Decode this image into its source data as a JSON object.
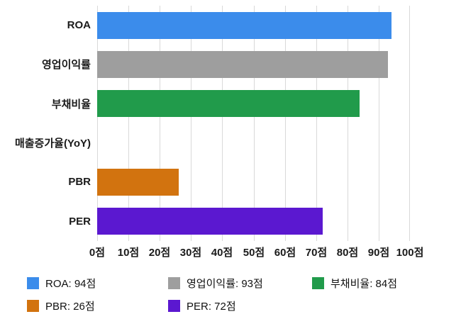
{
  "chart_data": {
    "type": "bar",
    "orientation": "horizontal",
    "title": "",
    "xlabel": "",
    "ylabel": "",
    "unit": "점",
    "xlim": [
      0,
      100
    ],
    "grid": true,
    "legend_position": "bottom",
    "x_ticks": [
      "0점",
      "10점",
      "20점",
      "30점",
      "40점",
      "50점",
      "60점",
      "70점",
      "80점",
      "90점",
      "100점"
    ],
    "categories": [
      "ROA",
      "영업이익률",
      "부채비율",
      "매출증가율(YoY)",
      "PBR",
      "PER"
    ],
    "values": [
      94,
      93,
      84,
      0,
      26,
      72
    ],
    "bars": [
      {
        "label": "ROA",
        "value": 94,
        "color": "#3b8ceb"
      },
      {
        "label": "영업이익률",
        "value": 93,
        "color": "#9e9e9e"
      },
      {
        "label": "부채비율",
        "value": 84,
        "color": "#219b4b"
      },
      {
        "label": "매출증가율(YoY)",
        "value": 0,
        "color": null
      },
      {
        "label": "PBR",
        "value": 26,
        "color": "#d2730f"
      },
      {
        "label": "PER",
        "value": 72,
        "color": "#5b18d0"
      }
    ],
    "legend": [
      {
        "label": "ROA: 94점",
        "color": "#3b8ceb"
      },
      {
        "label": "영업이익률: 93점",
        "color": "#9e9e9e"
      },
      {
        "label": "부채비율: 84점",
        "color": "#219b4b"
      },
      {
        "label": "PBR: 26점",
        "color": "#d2730f"
      },
      {
        "label": "PER: 72점",
        "color": "#5b18d0"
      }
    ]
  }
}
